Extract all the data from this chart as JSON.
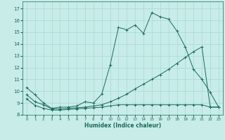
{
  "xlabel": "Humidex (Indice chaleur)",
  "bg_color": "#c8ece8",
  "grid_color": "#a8d8d4",
  "line_color": "#1a6b5a",
  "spine_color": "#1a6b5a",
  "xlim": [
    -0.5,
    23.5
  ],
  "ylim": [
    8.0,
    17.6
  ],
  "xticks": [
    0,
    1,
    2,
    3,
    4,
    5,
    6,
    7,
    8,
    9,
    10,
    11,
    12,
    13,
    14,
    15,
    16,
    17,
    18,
    19,
    20,
    21,
    22,
    23
  ],
  "yticks": [
    8,
    9,
    10,
    11,
    12,
    13,
    14,
    15,
    16,
    17
  ],
  "line1_x": [
    0,
    1,
    2,
    3,
    4,
    5,
    6,
    7,
    8,
    9,
    10,
    11,
    12,
    13,
    14,
    15,
    16,
    17,
    18,
    19,
    20,
    21,
    22,
    23
  ],
  "line1_y": [
    10.3,
    9.7,
    9.0,
    8.55,
    8.65,
    8.65,
    8.75,
    9.1,
    9.0,
    9.75,
    12.2,
    15.4,
    15.2,
    15.6,
    14.9,
    16.65,
    16.3,
    16.1,
    15.1,
    13.75,
    11.85,
    11.0,
    9.9,
    8.65
  ],
  "line2_x": [
    0,
    1,
    2,
    3,
    4,
    5,
    6,
    7,
    8,
    9,
    10,
    11,
    12,
    13,
    14,
    15,
    16,
    17,
    18,
    19,
    20,
    21,
    22,
    23
  ],
  "line2_y": [
    9.7,
    9.1,
    8.85,
    8.5,
    8.5,
    8.55,
    8.6,
    8.65,
    8.75,
    8.85,
    9.1,
    9.4,
    9.75,
    10.2,
    10.6,
    11.0,
    11.4,
    11.85,
    12.35,
    12.85,
    13.35,
    13.75,
    8.65,
    8.65
  ],
  "line3_x": [
    0,
    1,
    2,
    3,
    4,
    5,
    6,
    7,
    8,
    9,
    10,
    11,
    12,
    13,
    14,
    15,
    16,
    17,
    18,
    19,
    20,
    21,
    22,
    23
  ],
  "line3_y": [
    9.35,
    8.8,
    8.55,
    8.4,
    8.4,
    8.45,
    8.5,
    8.55,
    8.6,
    8.65,
    8.75,
    8.85,
    8.85,
    8.85,
    8.85,
    8.85,
    8.85,
    8.85,
    8.85,
    8.85,
    8.85,
    8.85,
    8.65,
    8.65
  ]
}
